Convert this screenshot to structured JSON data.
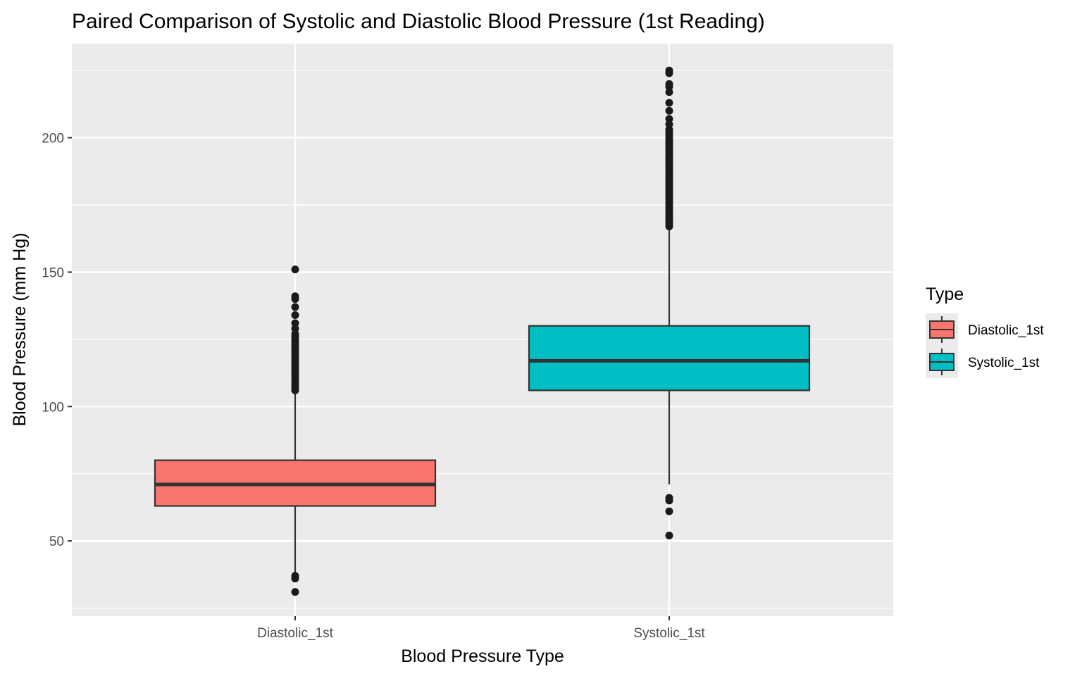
{
  "chart_data": {
    "type": "boxplot",
    "title": "Paired Comparison of Systolic and Diastolic Blood Pressure (1st Reading)",
    "xlabel": "Blood Pressure Type",
    "ylabel": "Blood Pressure (mm Hg)",
    "ylim": [
      22,
      235
    ],
    "y_ticks": [
      50,
      100,
      150,
      200
    ],
    "grid": true,
    "legend_position": "right",
    "legend_title": "Type",
    "categories": [
      "Diastolic_1st",
      "Systolic_1st"
    ],
    "boxes": [
      {
        "name": "Diastolic_1st",
        "color": "#F8766D",
        "q1": 63,
        "median": 71,
        "q3": 80,
        "whisker_low": 38,
        "whisker_high": 105,
        "outliers": [
          31,
          36,
          37,
          106,
          107,
          108,
          109,
          110,
          111,
          112,
          113,
          114,
          115,
          116,
          117,
          118,
          119,
          120,
          121,
          122,
          123,
          124,
          125,
          126,
          127,
          129,
          131,
          134,
          137,
          140,
          141,
          151
        ]
      },
      {
        "name": "Systolic_1st",
        "color": "#00BFC4",
        "q1": 106,
        "median": 117,
        "q3": 130,
        "whisker_low": 71,
        "whisker_high": 166,
        "outliers": [
          52,
          61,
          65,
          66,
          167,
          168,
          169,
          170,
          171,
          172,
          173,
          174,
          175,
          176,
          177,
          178,
          179,
          180,
          181,
          182,
          183,
          184,
          185,
          186,
          187,
          188,
          189,
          190,
          191,
          192,
          193,
          194,
          195,
          196,
          197,
          198,
          199,
          200,
          201,
          202,
          203,
          205,
          207,
          210,
          213,
          217,
          219,
          220,
          224,
          225
        ]
      }
    ]
  }
}
